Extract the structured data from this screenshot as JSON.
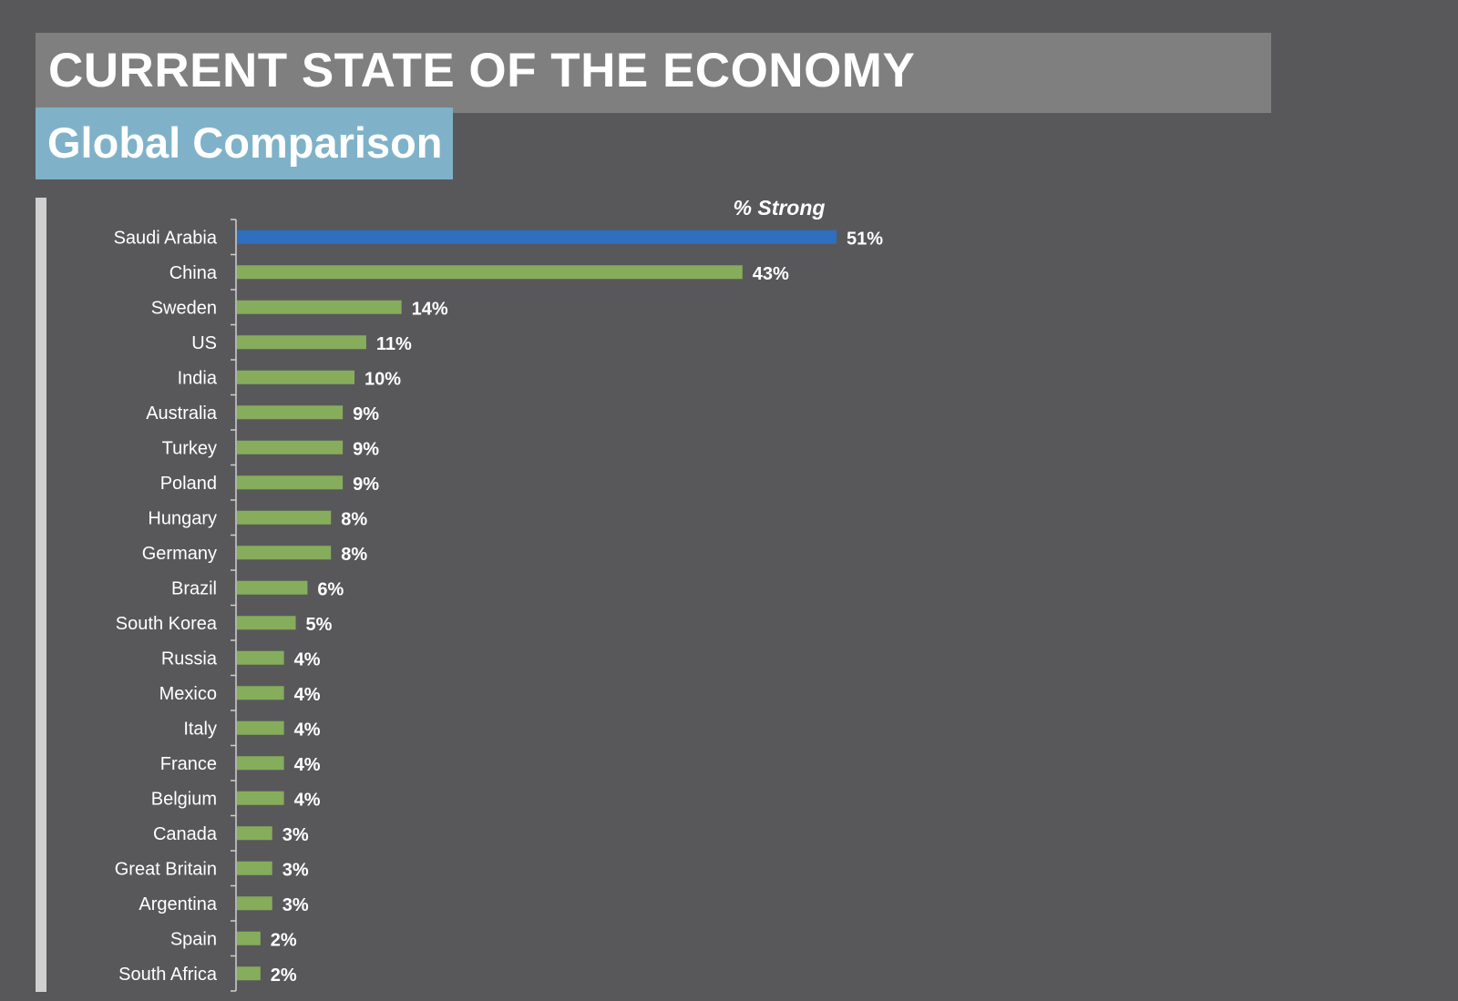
{
  "header": {
    "title": "CURRENT STATE OF THE ECONOMY",
    "subtitle": "Global Comparison"
  },
  "colors": {
    "background": "#58585a",
    "title_bar": "#7f7f7f",
    "subtitle_bar": "#7fb2c8",
    "highlight_bar": "#2e6fc0",
    "default_bar": "#86ad5b",
    "text": "#ffffff"
  },
  "chart_data": {
    "type": "bar",
    "orientation": "horizontal",
    "title": "% Strong",
    "xlabel": "",
    "ylabel": "",
    "xlim": [
      0,
      51
    ],
    "grid": false,
    "legend": "none",
    "value_suffix": "%",
    "highlight_category": "Saudi Arabia",
    "categories": [
      "Saudi Arabia",
      "China",
      "Sweden",
      "US",
      "India",
      "Australia",
      "Turkey",
      "Poland",
      "Hungary",
      "Germany",
      "Brazil",
      "South Korea",
      "Russia",
      "Mexico",
      "Italy",
      "France",
      "Belgium",
      "Canada",
      "Great Britain",
      "Argentina",
      "Spain",
      "South Africa"
    ],
    "values": [
      51,
      43,
      14,
      11,
      10,
      9,
      9,
      9,
      8,
      8,
      6,
      5,
      4,
      4,
      4,
      4,
      4,
      3,
      3,
      3,
      2,
      2
    ]
  }
}
